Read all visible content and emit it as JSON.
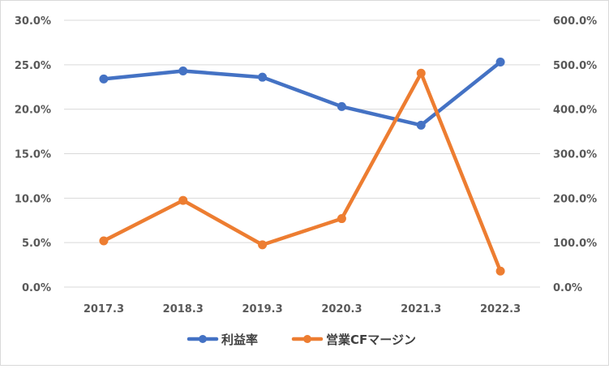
{
  "chart_data": {
    "type": "line",
    "categories": [
      "2017.3",
      "2018.3",
      "2019.3",
      "2020.3",
      "2021.3",
      "2022.3"
    ],
    "series": [
      {
        "name": "利益率",
        "axis": "left",
        "color": "#4472c4",
        "values": [
          23.4,
          24.3,
          23.6,
          20.3,
          18.2,
          25.3
        ]
      },
      {
        "name": "営業CFマージン",
        "axis": "right",
        "color": "#ed7d31",
        "values": [
          104,
          195,
          95,
          154,
          481,
          36
        ]
      }
    ],
    "y_left": {
      "ylim": [
        0,
        30
      ],
      "ticks": [
        "0.0%",
        "5.0%",
        "10.0%",
        "15.0%",
        "20.0%",
        "25.0%",
        "30.0%"
      ]
    },
    "y_right": {
      "ylim": [
        0,
        600
      ],
      "ticks": [
        "0.0%",
        "100.0%",
        "200.0%",
        "300.0%",
        "400.0%",
        "500.0%",
        "600.0%"
      ]
    },
    "grid": true,
    "legend": "bottom",
    "title": "",
    "xlabel": "",
    "ylabel": ""
  }
}
